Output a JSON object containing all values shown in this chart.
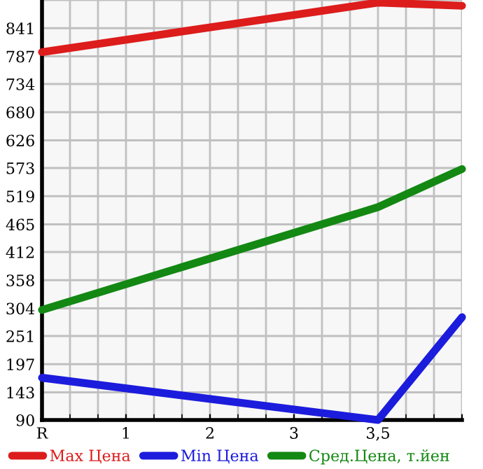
{
  "chart_data": {
    "type": "line",
    "categories": [
      "R",
      "1",
      "2",
      "3",
      "3,5",
      null
    ],
    "ylim": [
      90,
      895
    ],
    "yticks": [
      90,
      143,
      197,
      251,
      304,
      358,
      412,
      465,
      519,
      573,
      626,
      680,
      734,
      787,
      841
    ],
    "grid": true,
    "legend": "bottom",
    "marker": "none",
    "line_style": "solid",
    "series": [
      {
        "name": "Max Цена",
        "color": "#dd1c1c",
        "values": [
          795,
          null,
          null,
          null,
          890,
          884
        ]
      },
      {
        "name": "Min Цена",
        "color": "#1c1cdd",
        "values": [
          171,
          null,
          null,
          null,
          90,
          287
        ]
      },
      {
        "name": "Сред.Цена, т.йен",
        "color": "#138813",
        "values": [
          301,
          null,
          null,
          null,
          498,
          571
        ]
      }
    ]
  }
}
